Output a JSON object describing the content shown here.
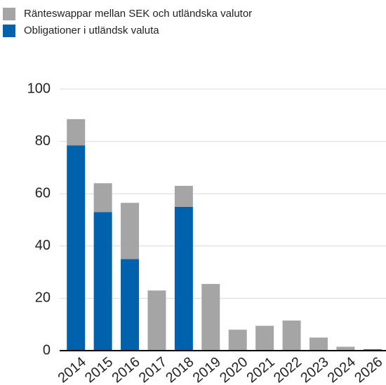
{
  "chart_data": {
    "type": "stacked_bar",
    "categories": [
      "2014",
      "2015",
      "2016",
      "2017",
      "2018",
      "2019",
      "2020",
      "2021",
      "2022",
      "2023",
      "2024",
      "2026"
    ],
    "series": [
      {
        "name": "Obligationer i utländsk valuta",
        "color": "#0062ac",
        "values": [
          78.5,
          53,
          35,
          0,
          55,
          0,
          0,
          0,
          0,
          0,
          0,
          0.5
        ]
      },
      {
        "name": "Ränteswappar mellan SEK och utländska valutor",
        "color": "#a5a5a5",
        "values": [
          10,
          11,
          21.5,
          23,
          8,
          25.5,
          8,
          9.5,
          11.5,
          5,
          1.5,
          0
        ]
      }
    ],
    "ylim": [
      0,
      100
    ],
    "yticks": [
      0,
      20,
      40,
      60,
      80,
      100
    ],
    "grid": true
  }
}
